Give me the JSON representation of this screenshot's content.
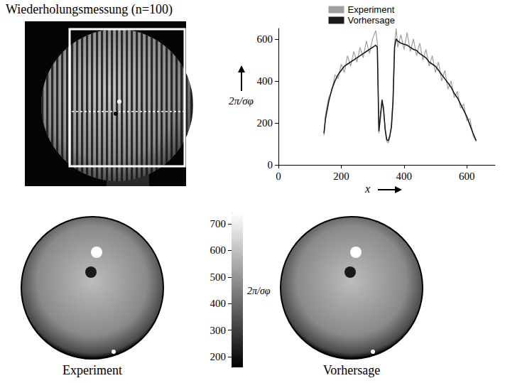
{
  "title": "Wiederholungsmessung (n=100)",
  "chart_data": {
    "type": "line",
    "x": [
      145,
      150,
      160,
      170,
      180,
      190,
      200,
      210,
      220,
      230,
      240,
      250,
      260,
      270,
      280,
      290,
      300,
      310,
      315,
      320,
      325,
      330,
      335,
      340,
      345,
      350,
      355,
      360,
      365,
      370,
      375,
      380,
      390,
      400,
      410,
      420,
      430,
      440,
      450,
      460,
      470,
      480,
      490,
      500,
      510,
      520,
      530,
      540,
      550,
      560,
      570,
      580,
      590,
      600,
      610,
      620,
      630
    ],
    "series": [
      {
        "name": "Experiment",
        "color": "#a0a0a0",
        "values": [
          140,
          240,
          320,
          350,
          430,
          410,
          480,
          440,
          520,
          470,
          540,
          490,
          560,
          510,
          590,
          530,
          600,
          640,
          580,
          150,
          250,
          300,
          280,
          160,
          110,
          105,
          130,
          200,
          320,
          580,
          650,
          560,
          620,
          550,
          630,
          540,
          600,
          520,
          580,
          500,
          550,
          470,
          520,
          440,
          490,
          400,
          450,
          360,
          400,
          320,
          350,
          270,
          290,
          210,
          220,
          140,
          110
        ]
      },
      {
        "name": "Vorhersage",
        "color": "#1a1a1a",
        "values": [
          150,
          220,
          300,
          360,
          400,
          430,
          450,
          470,
          480,
          490,
          500,
          510,
          520,
          530,
          540,
          550,
          560,
          570,
          560,
          160,
          230,
          310,
          260,
          170,
          120,
          115,
          140,
          180,
          300,
          560,
          600,
          590,
          580,
          575,
          570,
          560,
          550,
          545,
          530,
          520,
          510,
          490,
          480,
          470,
          450,
          430,
          410,
          390,
          370,
          340,
          320,
          290,
          260,
          230,
          190,
          150,
          115
        ]
      }
    ],
    "xlabel": "x",
    "ylabel": "2π/σφ",
    "xlim": [
      0,
      690
    ],
    "xticks": [
      0,
      200,
      400,
      600
    ],
    "ylim": [
      0,
      650
    ],
    "yticks": [
      0,
      200,
      400,
      600
    ],
    "legend": "top right",
    "grid": false
  },
  "maps": {
    "panels": [
      "Experiment",
      "Vorhersage"
    ],
    "colorbar": {
      "label": "2π/σφ",
      "range": [
        160,
        740
      ],
      "ticks": [
        200,
        300,
        400,
        500,
        600,
        700
      ],
      "colors": [
        "#000000",
        "#ffffff"
      ]
    }
  }
}
